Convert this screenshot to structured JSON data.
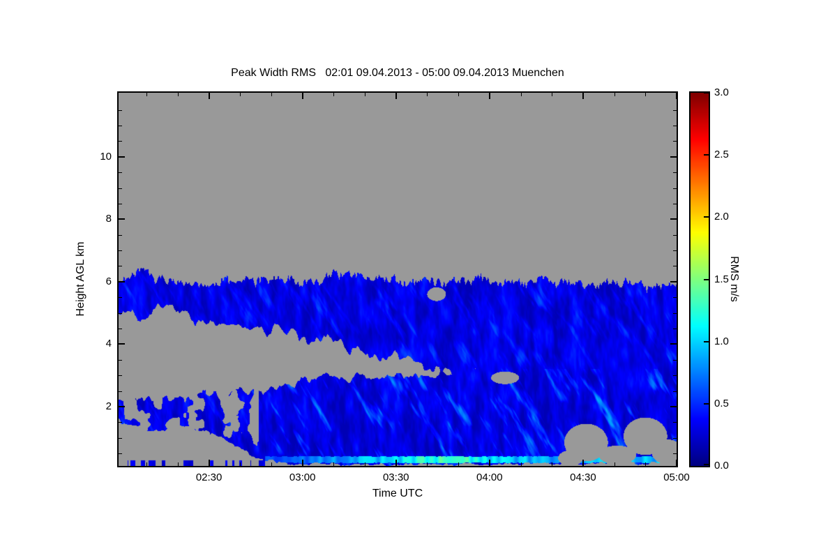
{
  "page": {
    "background": "#ffffff"
  },
  "chart_data": {
    "type": "heatmap",
    "title": "Peak Width RMS   02:01 09.04.2013 - 05:00 09.04.2013 Muenchen",
    "xlabel": "Time UTC",
    "ylabel": "Height AGL km",
    "x_range_minutes": [
      1,
      180
    ],
    "x_ticks": [
      {
        "label": "02:30",
        "min": 30
      },
      {
        "label": "03:00",
        "min": 60
      },
      {
        "label": "03:30",
        "min": 90
      },
      {
        "label": "04:00",
        "min": 120
      },
      {
        "label": "04:30",
        "min": 150
      },
      {
        "label": "05:00",
        "min": 180
      }
    ],
    "x_minor_step_min": 10,
    "y_range_km": [
      0.1,
      12.05
    ],
    "y_ticks": [
      {
        "label": "2",
        "km": 2
      },
      {
        "label": "4",
        "km": 4
      },
      {
        "label": "6",
        "km": 6
      },
      {
        "label": "8",
        "km": 8
      },
      {
        "label": "10",
        "km": 10
      }
    ],
    "y_minor_step_km": 0.5,
    "no_data_color": "#999999",
    "frame_color": "#000000",
    "colorbar": {
      "label": "RMS m/s",
      "min": 0,
      "max": 3,
      "tick_labels": [
        "0.0",
        "0.5",
        "1.0",
        "1.5",
        "2.0",
        "2.5",
        "3.0"
      ],
      "colormap": "jet"
    },
    "regions": [
      {
        "name": "upper cloud layer",
        "time": "02:01-05:00",
        "height_km": [
          2.8,
          6.3
        ],
        "rms_m_s": [
          0.1,
          0.6
        ]
      },
      {
        "name": "lower layer",
        "time": "02:45-05:00",
        "height_km": [
          0.2,
          3.0
        ],
        "rms_m_s": [
          0.1,
          0.9
        ]
      },
      {
        "name": "scattered patches",
        "time": "02:01-02:45",
        "height_km": [
          1.0,
          2.4
        ],
        "rms_m_s": [
          0.1,
          0.4
        ]
      },
      {
        "name": "near-surface bright stripe",
        "time": "02:50-05:00",
        "height_km": [
          0.2,
          0.4
        ],
        "rms_m_s": [
          0.7,
          1.3
        ]
      },
      {
        "name": "no data",
        "value": null,
        "color": "#999999"
      }
    ],
    "layers": {
      "upper": {
        "points": [
          [
            1,
            5.95,
            5.05
          ],
          [
            8,
            6.3,
            4.85
          ],
          [
            14,
            6.05,
            5.25
          ],
          [
            20,
            6.0,
            4.95
          ],
          [
            28,
            5.9,
            4.7
          ],
          [
            36,
            6.0,
            4.55
          ],
          [
            45,
            6.05,
            4.45
          ],
          [
            55,
            6.1,
            4.3
          ],
          [
            62,
            5.95,
            4.15
          ],
          [
            70,
            6.25,
            4.0
          ],
          [
            78,
            6.15,
            3.8
          ],
          [
            88,
            6.05,
            3.6
          ],
          [
            95,
            6.0,
            3.45
          ],
          [
            102,
            6.05,
            3.2
          ],
          [
            110,
            6.0,
            3.05
          ],
          [
            120,
            6.05,
            2.95
          ],
          [
            130,
            6.0,
            2.9
          ],
          [
            142,
            6.0,
            2.85
          ],
          [
            155,
            5.95,
            2.8
          ],
          [
            168,
            5.9,
            2.75
          ],
          [
            180,
            5.85,
            2.7
          ]
        ]
      },
      "lower": {
        "points": [
          [
            1,
            2.3,
            1.5
          ],
          [
            12,
            2.25,
            1.2
          ],
          [
            22,
            2.35,
            1.4
          ],
          [
            32,
            2.4,
            1.1
          ],
          [
            40,
            2.45,
            0.7
          ],
          [
            46,
            2.55,
            0.3
          ],
          [
            55,
            2.75,
            0.18
          ],
          [
            70,
            2.9,
            0.15
          ],
          [
            85,
            3.0,
            0.15
          ],
          [
            95,
            3.0,
            0.15
          ],
          [
            102,
            3.05,
            0.15
          ],
          [
            110,
            3.15,
            0.15
          ],
          [
            120,
            3.3,
            0.15
          ],
          [
            135,
            3.45,
            0.18
          ],
          [
            180,
            3.5,
            0.2
          ]
        ],
        "patchy_before": 46
      },
      "dashes": {
        "h_max": 0.28,
        "t_start": 4,
        "t_end": 48
      },
      "bottom_stripe": {
        "h": 0.3,
        "half_thickness": 0.09,
        "points": [
          [
            48,
            0.55
          ],
          [
            70,
            0.8
          ],
          [
            85,
            0.95
          ],
          [
            100,
            1.25
          ],
          [
            112,
            1.2
          ],
          [
            125,
            0.95
          ],
          [
            140,
            0.85
          ],
          [
            160,
            0.9
          ],
          [
            180,
            0.95
          ]
        ]
      },
      "holes": [
        {
          "t": 125,
          "h": 2.92,
          "rt": 4.5,
          "rh": 0.2
        },
        {
          "t": 103,
          "h": 5.6,
          "rt": 3,
          "rh": 0.22
        },
        {
          "t": 151,
          "h": 0.85,
          "rt": 7,
          "rh": 0.6
        },
        {
          "t": 161,
          "h": 0.45,
          "rt": 6,
          "rh": 0.3
        },
        {
          "t": 170,
          "h": 1.05,
          "rt": 7,
          "rh": 0.6
        },
        {
          "t": 177,
          "h": 0.55,
          "rt": 5,
          "rh": 0.4
        },
        {
          "t": 146,
          "h": 0.35,
          "rt": 4,
          "rh": 0.25
        }
      ],
      "value": {
        "base": 0.16,
        "noise_amp": 0.5,
        "streak_threshold": 0.58
      }
    }
  }
}
